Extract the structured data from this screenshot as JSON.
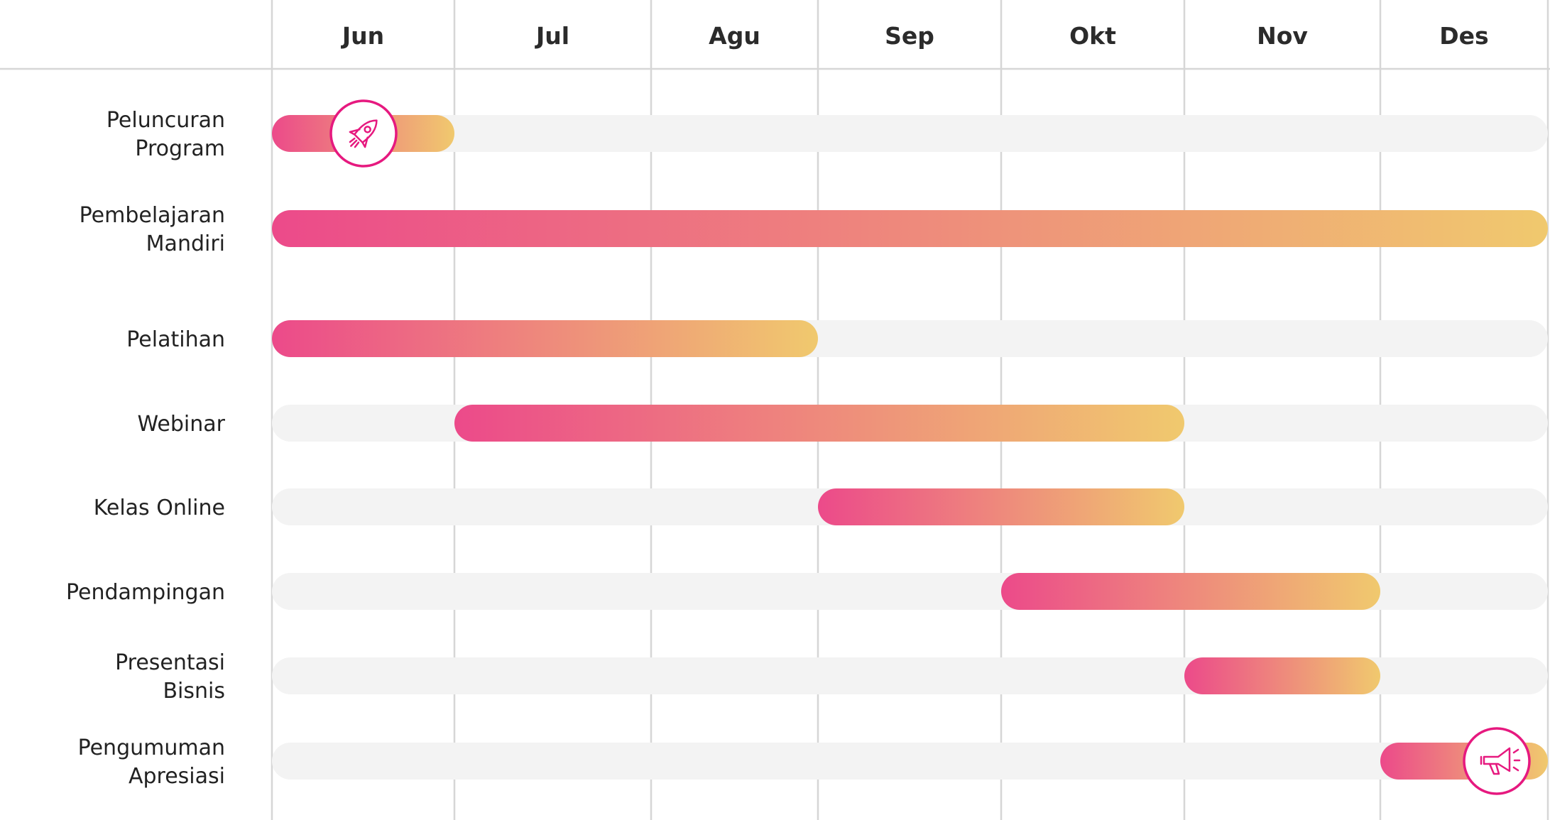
{
  "chart_data": {
    "type": "gantt",
    "months": [
      "Jun",
      "Jul",
      "Agu",
      "Sep",
      "Okt",
      "Nov",
      "Des"
    ],
    "tasks": [
      {
        "label_lines": [
          "Peluncuran",
          "Program"
        ],
        "start": "Jun",
        "end": "Jun",
        "icon": "rocket-icon"
      },
      {
        "label_lines": [
          "Pembelajaran",
          "Mandiri"
        ],
        "start": "Jun",
        "end": "Des"
      },
      {
        "label_lines": [
          "Pelatihan"
        ],
        "start": "Jun",
        "end": "Agu"
      },
      {
        "label_lines": [
          "Webinar"
        ],
        "start": "Jul",
        "end": "Okt"
      },
      {
        "label_lines": [
          "Kelas Online"
        ],
        "start": "Sep",
        "end": "Okt"
      },
      {
        "label_lines": [
          "Pendampingan"
        ],
        "start": "Okt",
        "end": "Nov"
      },
      {
        "label_lines": [
          "Presentasi",
          "Bisnis"
        ],
        "start": "Nov",
        "end": "Nov"
      },
      {
        "label_lines": [
          "Pengumuman",
          "Apresiasi"
        ],
        "start": "Des",
        "end": "Des",
        "icon": "megaphone-icon"
      }
    ],
    "colors": {
      "bar_start": "#ec4a8a",
      "bar_end": "#f0c96e",
      "track": "#f3f3f3",
      "grid": "#d6d6d6",
      "icon": "#e6197f"
    }
  }
}
